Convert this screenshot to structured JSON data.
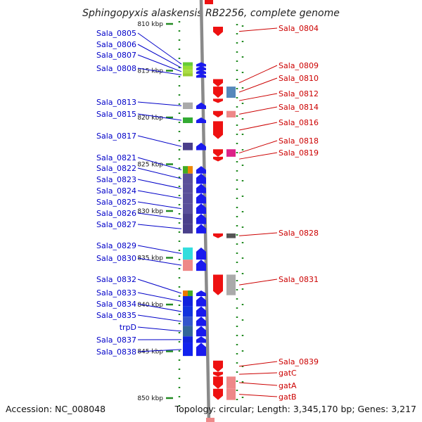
{
  "title": "Sphingopyxis alaskensis RB2256, complete genome",
  "footer": {
    "accession": "Accession: NC_008048",
    "topology": "Topology: circular; Length: 3,345,170 bp; Genes: 3,217"
  },
  "colors": {
    "left_label": "#0000c8",
    "right_label": "#cc0000",
    "backbone": "#8a8a8a",
    "tick": "#228b22"
  },
  "ruler": [
    {
      "kbp": 810,
      "label": "810 kbp"
    },
    {
      "kbp": 815,
      "label": "815 kbp"
    },
    {
      "kbp": 820,
      "label": "820 kbp"
    },
    {
      "kbp": 825,
      "label": "825 kbp"
    },
    {
      "kbp": 830,
      "label": "830 kbp"
    },
    {
      "kbp": 835,
      "label": "835 kbp"
    },
    {
      "kbp": 840,
      "label": "840 kbp"
    },
    {
      "kbp": 845,
      "label": "845 kbp"
    },
    {
      "kbp": 850,
      "label": "850 kbp"
    }
  ],
  "genes_minus": [
    {
      "name": "Sala_0805",
      "start": 814.1,
      "end": 814.5,
      "color": "#66cc33"
    },
    {
      "name": "Sala_0806",
      "start": 814.5,
      "end": 814.9,
      "color": "#99dd33"
    },
    {
      "name": "Sala_0807",
      "start": 814.9,
      "end": 815.3,
      "color": "#aadd44"
    },
    {
      "name": "Sala_0808",
      "start": 815.3,
      "end": 815.5,
      "color": "#99cc33"
    },
    {
      "name": "Sala_0813",
      "start": 818.4,
      "end": 819.1,
      "color": "#aaaaaa"
    },
    {
      "name": "Sala_0815",
      "start": 820.0,
      "end": 820.6,
      "color": "#33aa33"
    },
    {
      "name": "Sala_0817",
      "start": 822.7,
      "end": 823.5,
      "color": "#4a3f8a"
    },
    {
      "name": "Sala_0821",
      "start": 825.2,
      "end": 826.0,
      "color": "#44aa22",
      "extra_color": "#ee8800"
    },
    {
      "name": "Sala_0822",
      "start": 826.0,
      "end": 827.1,
      "color": "#5a4f9a"
    },
    {
      "name": "Sala_0823",
      "start": 827.1,
      "end": 828.1,
      "color": "#5a4f9a"
    },
    {
      "name": "Sala_0824",
      "start": 828.1,
      "end": 829.2,
      "color": "#5a4f9a"
    },
    {
      "name": "Sala_0825",
      "start": 829.2,
      "end": 830.3,
      "color": "#5a4f9a"
    },
    {
      "name": "Sala_0826",
      "start": 830.3,
      "end": 831.4,
      "color": "#4a3f8a"
    },
    {
      "name": "Sala_0827",
      "start": 831.4,
      "end": 832.4,
      "color": "#4a3f8a"
    },
    {
      "name": "Sala_0829",
      "start": 833.9,
      "end": 835.2,
      "color": "#33dddd"
    },
    {
      "name": "Sala_0830",
      "start": 835.2,
      "end": 836.4,
      "color": "#ee8888"
    },
    {
      "name": "Sala_0832",
      "start": 838.5,
      "end": 839.1,
      "color": "#ee7700",
      "extra_color": "#44aa22"
    },
    {
      "name": "Sala_0833",
      "start": 839.1,
      "end": 840.2,
      "color": "#1122dd"
    },
    {
      "name": "Sala_0834",
      "start": 840.2,
      "end": 841.3,
      "color": "#1133dd"
    },
    {
      "name": "Sala_0835",
      "start": 841.3,
      "end": 842.3,
      "color": "#3355cc"
    },
    {
      "name": "trpD",
      "start": 842.3,
      "end": 843.4,
      "color": "#336699"
    },
    {
      "name": "Sala_0837",
      "start": 843.4,
      "end": 844.1,
      "color": "#1122dd"
    },
    {
      "name": "Sala_0838",
      "start": 844.1,
      "end": 845.5,
      "color": "#1122ee"
    }
  ],
  "genes_plus": [
    {
      "name": "Sala_0804",
      "start": 810.3,
      "end": 811.3,
      "color": "#ee1111"
    },
    {
      "name": "Sala_0809",
      "start": 815.9,
      "end": 816.7,
      "color": "#ee1111"
    },
    {
      "name": "Sala_0810",
      "start": 816.7,
      "end": 817.9,
      "color": "#5588bb"
    },
    {
      "name": "Sala_0812",
      "start": 818.0,
      "end": 818.4,
      "color": "#ee1111"
    },
    {
      "name": "Sala_0814",
      "start": 819.3,
      "end": 820.0,
      "color": "#ee8888"
    },
    {
      "name": "Sala_0816",
      "start": 820.4,
      "end": 822.3,
      "color": "#ee1111"
    },
    {
      "name": "Sala_0818",
      "start": 823.4,
      "end": 824.2,
      "color": "#dd2288"
    },
    {
      "name": "Sala_0819",
      "start": 824.2,
      "end": 824.7,
      "color": "#ee1111"
    },
    {
      "name": "Sala_0828",
      "start": 832.4,
      "end": 832.9,
      "color": "#555555"
    },
    {
      "name": "Sala_0831",
      "start": 836.8,
      "end": 839.0,
      "color": "#aaaaaa"
    },
    {
      "name": "Sala_0839",
      "start": 846.0,
      "end": 847.2,
      "color": "#ee1111"
    },
    {
      "name": "gatC",
      "start": 847.2,
      "end": 847.7,
      "color": "#ee1111"
    },
    {
      "name": "gatA",
      "start": 847.7,
      "end": 849.0,
      "color": "#ee8888"
    },
    {
      "name": "gatB",
      "start": 849.0,
      "end": 850.2,
      "color": "#ee8888"
    }
  ]
}
